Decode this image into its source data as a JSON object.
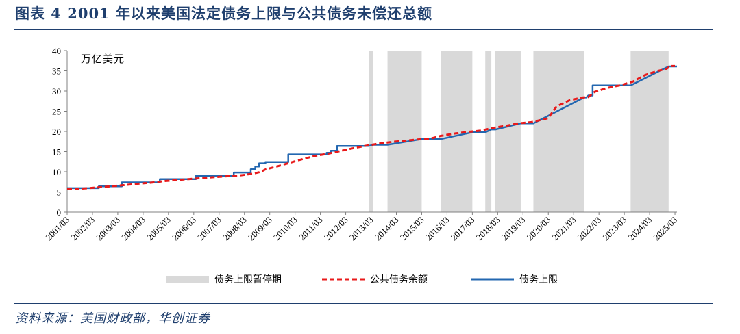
{
  "figure": {
    "title": "图表 4   2001 年以来美国法定债务上限与公共债务未偿还总额",
    "source": "资料来源：美国财政部，华创证券"
  },
  "chart_data": {
    "type": "line",
    "unit_label": "万亿美元",
    "ylim": [
      0,
      40
    ],
    "yticks": [
      0,
      5,
      10,
      15,
      20,
      25,
      30,
      35,
      40
    ],
    "xlim": [
      2001.17,
      2025.25
    ],
    "x_tick_labels": [
      "2001/03",
      "2002/03",
      "2003/03",
      "2004/03",
      "2005/03",
      "2006/03",
      "2007/03",
      "2008/03",
      "2009/03",
      "2010/03",
      "2011/03",
      "2012/03",
      "2013/03",
      "2014/03",
      "2015/03",
      "2016/03",
      "2017/03",
      "2018/03",
      "2019/03",
      "2020/03",
      "2021/03",
      "2022/03",
      "2023/03",
      "2024/03",
      "2025/03"
    ],
    "legend": [
      "债务上限暂停期",
      "公共债务余额",
      "债务上限"
    ],
    "legend_position": "bottom",
    "colors": {
      "suspension": "#d9d9d9",
      "public_debt": "#e8191a",
      "debt_ceiling": "#2367b0",
      "axis": "#808080",
      "title": "#1f3f6e"
    },
    "suspension_periods": [
      [
        2013.08,
        2013.25
      ],
      [
        2013.82,
        2015.17
      ],
      [
        2015.92,
        2017.17
      ],
      [
        2017.68,
        2017.92
      ],
      [
        2018.08,
        2019.08
      ],
      [
        2019.58,
        2021.58
      ],
      [
        2023.42,
        2024.92
      ]
    ],
    "series": [
      {
        "name": "公共债务余额",
        "style": "dashed",
        "x": [
          2001.17,
          2001.5,
          2002.0,
          2002.5,
          2003.0,
          2003.5,
          2004.0,
          2004.5,
          2005.0,
          2005.5,
          2006.0,
          2006.5,
          2007.0,
          2007.5,
          2008.0,
          2008.5,
          2008.83,
          2009.0,
          2009.5,
          2010.0,
          2010.5,
          2011.0,
          2011.5,
          2012.0,
          2012.5,
          2013.0,
          2013.5,
          2014.0,
          2014.5,
          2015.0,
          2015.17,
          2015.5,
          2015.92,
          2016.5,
          2017.0,
          2017.5,
          2018.0,
          2018.5,
          2019.0,
          2019.5,
          2019.92,
          2020.17,
          2020.33,
          2020.5,
          2021.0,
          2021.5,
          2021.75,
          2022.0,
          2022.5,
          2023.0,
          2023.5,
          2024.0,
          2024.5,
          2024.83,
          2025.0,
          2025.17
        ],
        "y": [
          5.7,
          5.75,
          5.95,
          6.2,
          6.45,
          6.75,
          7.05,
          7.3,
          7.7,
          7.95,
          8.2,
          8.45,
          8.7,
          8.9,
          9.1,
          9.5,
          10.0,
          10.6,
          11.4,
          12.3,
          13.2,
          14.0,
          14.5,
          15.2,
          15.9,
          16.5,
          17.0,
          17.4,
          17.7,
          18.0,
          18.1,
          18.2,
          18.9,
          19.5,
          19.9,
          20.2,
          20.9,
          21.4,
          22.0,
          22.3,
          22.9,
          23.3,
          24.8,
          26.2,
          27.7,
          28.4,
          28.5,
          29.8,
          30.8,
          31.4,
          32.3,
          34.0,
          35.0,
          35.5,
          36.2,
          36.2
        ]
      },
      {
        "name": "债务上限",
        "style": "solid",
        "x": [
          2001.17,
          2002.42,
          2002.42,
          2003.33,
          2003.33,
          2004.83,
          2004.83,
          2006.25,
          2006.25,
          2007.75,
          2007.75,
          2008.42,
          2008.42,
          2008.6,
          2008.6,
          2008.75,
          2008.75,
          2009.0,
          2009.0,
          2009.9,
          2009.9,
          2011.42,
          2011.42,
          2011.58,
          2011.58,
          2011.83,
          2011.83,
          2013.08,
          2013.25,
          2013.82,
          2015.17,
          2015.92,
          2017.17,
          2017.68,
          2017.92,
          2018.08,
          2019.08,
          2019.58,
          2021.58,
          2021.67,
          2021.75,
          2021.92,
          2021.92,
          2023.42,
          2024.92,
          2025.25
        ],
        "y": [
          5.95,
          5.95,
          6.4,
          6.4,
          7.38,
          7.38,
          8.18,
          8.18,
          8.97,
          8.97,
          9.82,
          9.82,
          10.62,
          10.62,
          11.3,
          11.3,
          12.1,
          12.1,
          12.4,
          12.4,
          14.3,
          14.3,
          14.7,
          14.7,
          15.2,
          15.2,
          16.4,
          16.4,
          16.7,
          16.7,
          18.1,
          18.1,
          19.8,
          19.8,
          20.5,
          20.5,
          22.0,
          22.0,
          28.4,
          28.4,
          28.9,
          28.9,
          31.4,
          31.4,
          36.1,
          36.1
        ]
      }
    ]
  }
}
